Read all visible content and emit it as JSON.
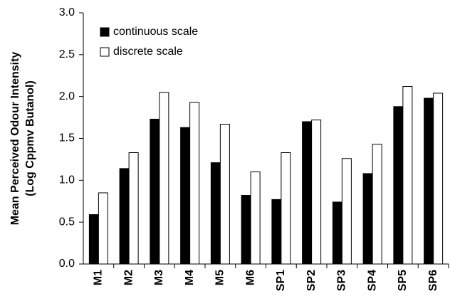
{
  "chart_data": {
    "type": "bar",
    "ylabel": [
      "Mean Perceived Odour Intensity",
      "(Log Cppmv Butanol)"
    ],
    "categories": [
      "M1",
      "M2",
      "M3",
      "M4",
      "M5",
      "M6",
      "SP1",
      "SP2",
      "SP3",
      "SP4",
      "SP5",
      "SP6"
    ],
    "series": [
      {
        "name": "continuous scale",
        "color": "#000000",
        "values": [
          0.59,
          1.14,
          1.73,
          1.63,
          1.21,
          0.82,
          0.77,
          1.7,
          0.74,
          1.08,
          1.88,
          1.98
        ]
      },
      {
        "name": "discrete scale",
        "color": "#ffffff",
        "values": [
          0.85,
          1.33,
          2.05,
          1.93,
          1.67,
          1.1,
          1.33,
          1.72,
          1.26,
          1.43,
          2.12,
          2.04
        ]
      }
    ],
    "ylim": [
      0,
      3
    ],
    "yticks": [
      {
        "value": 0,
        "label": "0.0"
      },
      0.5,
      {
        "value": 1,
        "label": "1.0"
      },
      1.5,
      {
        "value": 2,
        "label": "2.0"
      },
      2.5,
      {
        "value": 3,
        "label": "3.0"
      }
    ],
    "grid": false,
    "legend": "top-left"
  }
}
